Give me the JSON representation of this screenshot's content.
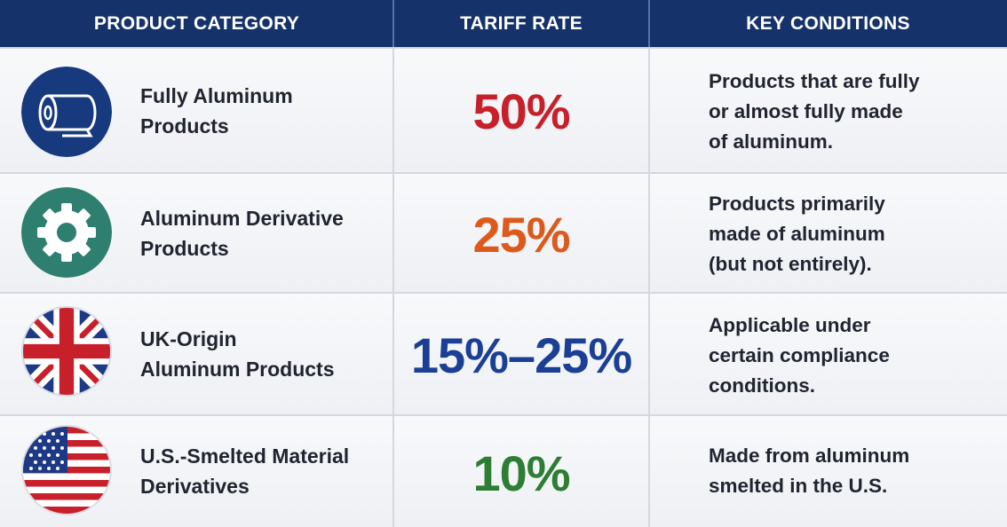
{
  "header": {
    "col_category": "PRODUCT CATEGORY",
    "col_rate": "TARIFF RATE",
    "col_conditions": "KEY CONDITIONS"
  },
  "rows": [
    {
      "icon": "aluminum-roll-icon",
      "category_lines": [
        "Fully Aluminum",
        "Products"
      ],
      "rate": "50%",
      "rate_color": "#c8202a",
      "condition_lines": [
        "Products that are fully",
        "or almost fully made",
        "of aluminum."
      ]
    },
    {
      "icon": "gear-icon",
      "category_lines": [
        "Aluminum Derivative",
        "Products"
      ],
      "rate": "25%",
      "rate_color": "#dc5a1c",
      "condition_lines": [
        "Products primarily",
        "made of aluminum",
        "(but not entirely)."
      ]
    },
    {
      "icon": "uk-flag-icon",
      "category_lines": [
        "UK-Origin",
        "Aluminum Products"
      ],
      "rate": "15%–25%",
      "rate_color": "#1b3f95",
      "condition_lines": [
        "Applicable under",
        "certain compliance",
        "conditions."
      ]
    },
    {
      "icon": "us-flag-icon",
      "category_lines": [
        "U.S.-Smelted Material",
        "Derivatives"
      ],
      "rate": "10%",
      "rate_color": "#2d7d34",
      "condition_lines": [
        "Made from aluminum",
        "smelted in the U.S."
      ]
    }
  ],
  "colors": {
    "header_bg": "#16326b",
    "roll_icon_bg": "#173a7e",
    "gear_icon_bg": "#2e7f70"
  }
}
